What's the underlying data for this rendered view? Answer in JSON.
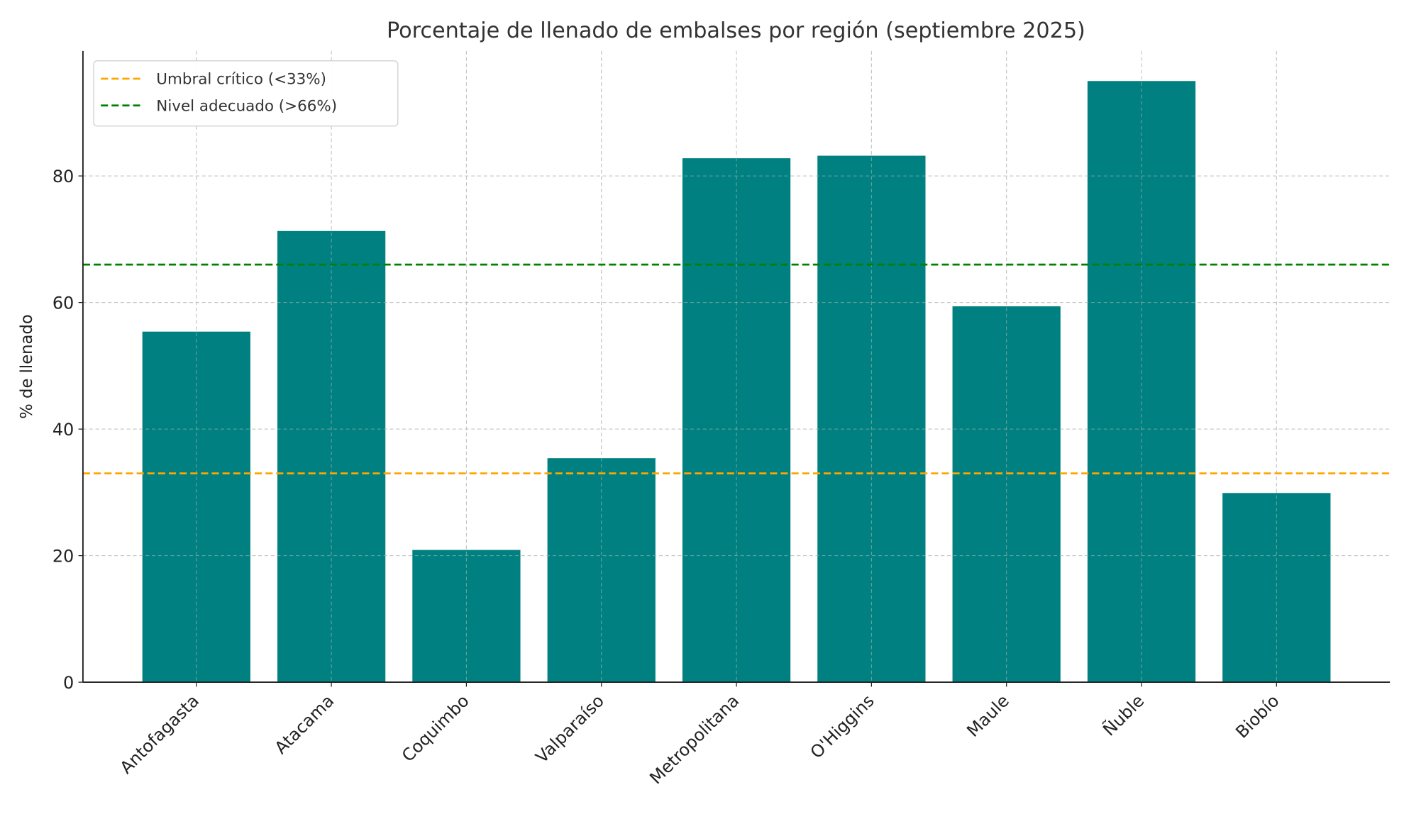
{
  "chart_data": {
    "type": "bar",
    "title": "Porcentaje de llenado de embalses por región (septiembre 2025)",
    "xlabel": "",
    "ylabel": "% de llenado",
    "categories": [
      "Antofagasta",
      "Atacama",
      "Coquimbo",
      "Valparaíso",
      "Metropolitana",
      "O'Higgins",
      "Maule",
      "Ñuble",
      "Biobío"
    ],
    "values": [
      55.4,
      71.3,
      20.9,
      35.4,
      82.8,
      83.2,
      59.4,
      95.0,
      29.9
    ],
    "ylim": [
      0,
      99.75
    ],
    "yticks": [
      0,
      20,
      40,
      60,
      80
    ],
    "grid": true,
    "bar_color": "#008080",
    "reference_lines": [
      {
        "label": "Umbral crítico (<33%)",
        "value": 33,
        "color": "#FFA500"
      },
      {
        "label": "Nivel adecuado (>66%)",
        "value": 66,
        "color": "#008000"
      }
    ],
    "legend_position": "top-left"
  }
}
